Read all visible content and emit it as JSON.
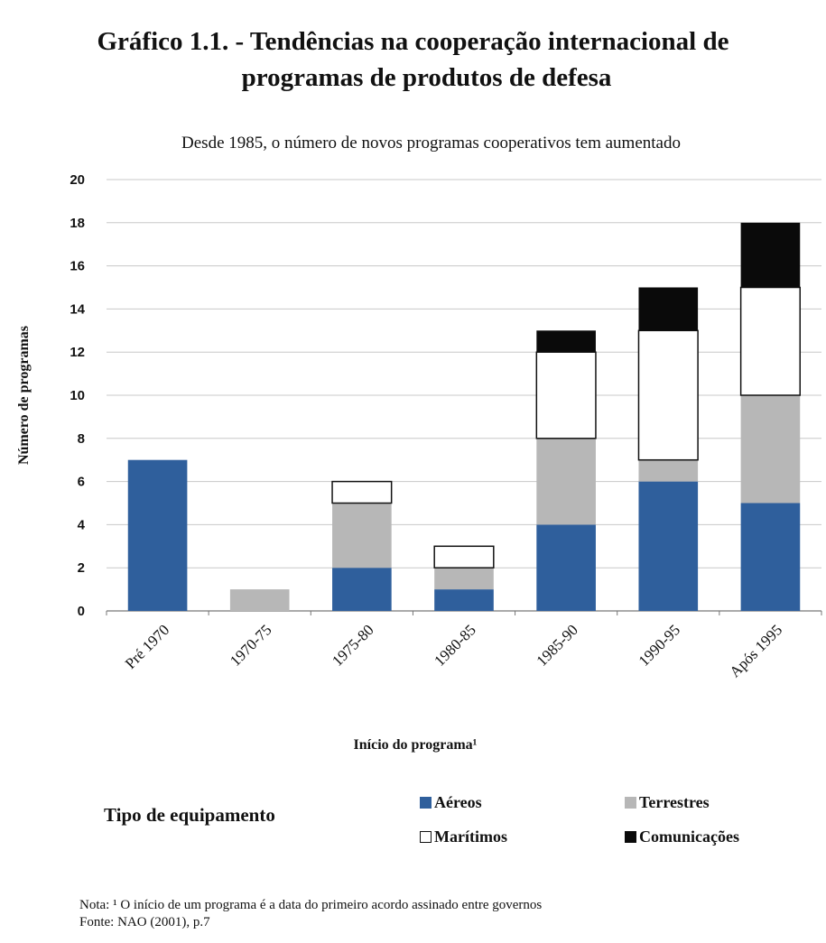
{
  "title_line1": "Gráfico 1.1. - Tendências na cooperação internacional de",
  "title_line2": "programas de produtos de defesa",
  "chart_data": {
    "type": "bar",
    "stacked": true,
    "title": "Gráfico 1.1. - Tendências na cooperação internacional de programas de produtos de defesa",
    "subtitle": "Desde 1985, o número de novos programas cooperativos tem aumentado",
    "xlabel": "Início do programa¹",
    "ylabel": "Número de programas",
    "ylim": [
      0,
      20
    ],
    "yticks": [
      "0",
      "2",
      "4",
      "6",
      "8",
      "10",
      "12",
      "14",
      "16",
      "18",
      "20"
    ],
    "grid": true,
    "categories": [
      "Pré 1970",
      "1970-75",
      "1975-80",
      "1980-85",
      "1985-90",
      "1990-95",
      "Após 1995"
    ],
    "series": [
      {
        "name": "Aéreos",
        "color": "#2f5f9c",
        "values": [
          7,
          0,
          2,
          1,
          4,
          6,
          5
        ]
      },
      {
        "name": "Terrestres",
        "color": "#b7b7b7",
        "values": [
          0,
          1,
          3,
          1,
          4,
          1,
          5
        ]
      },
      {
        "name": "Marítimos",
        "color": "#ffffff",
        "values": [
          0,
          0,
          1,
          1,
          4,
          6,
          5
        ]
      },
      {
        "name": "Comunicações",
        "color": "#0a0a0a",
        "values": [
          0,
          0,
          0,
          0,
          1,
          2,
          3
        ]
      }
    ],
    "legend_title": "Tipo de equipamento",
    "legend_position": "bottom"
  },
  "footnote": {
    "note": "Nota: ¹  O início de um programa é a data do primeiro acordo assinado entre governos",
    "source": "Fonte: NAO (2001), p.7"
  }
}
